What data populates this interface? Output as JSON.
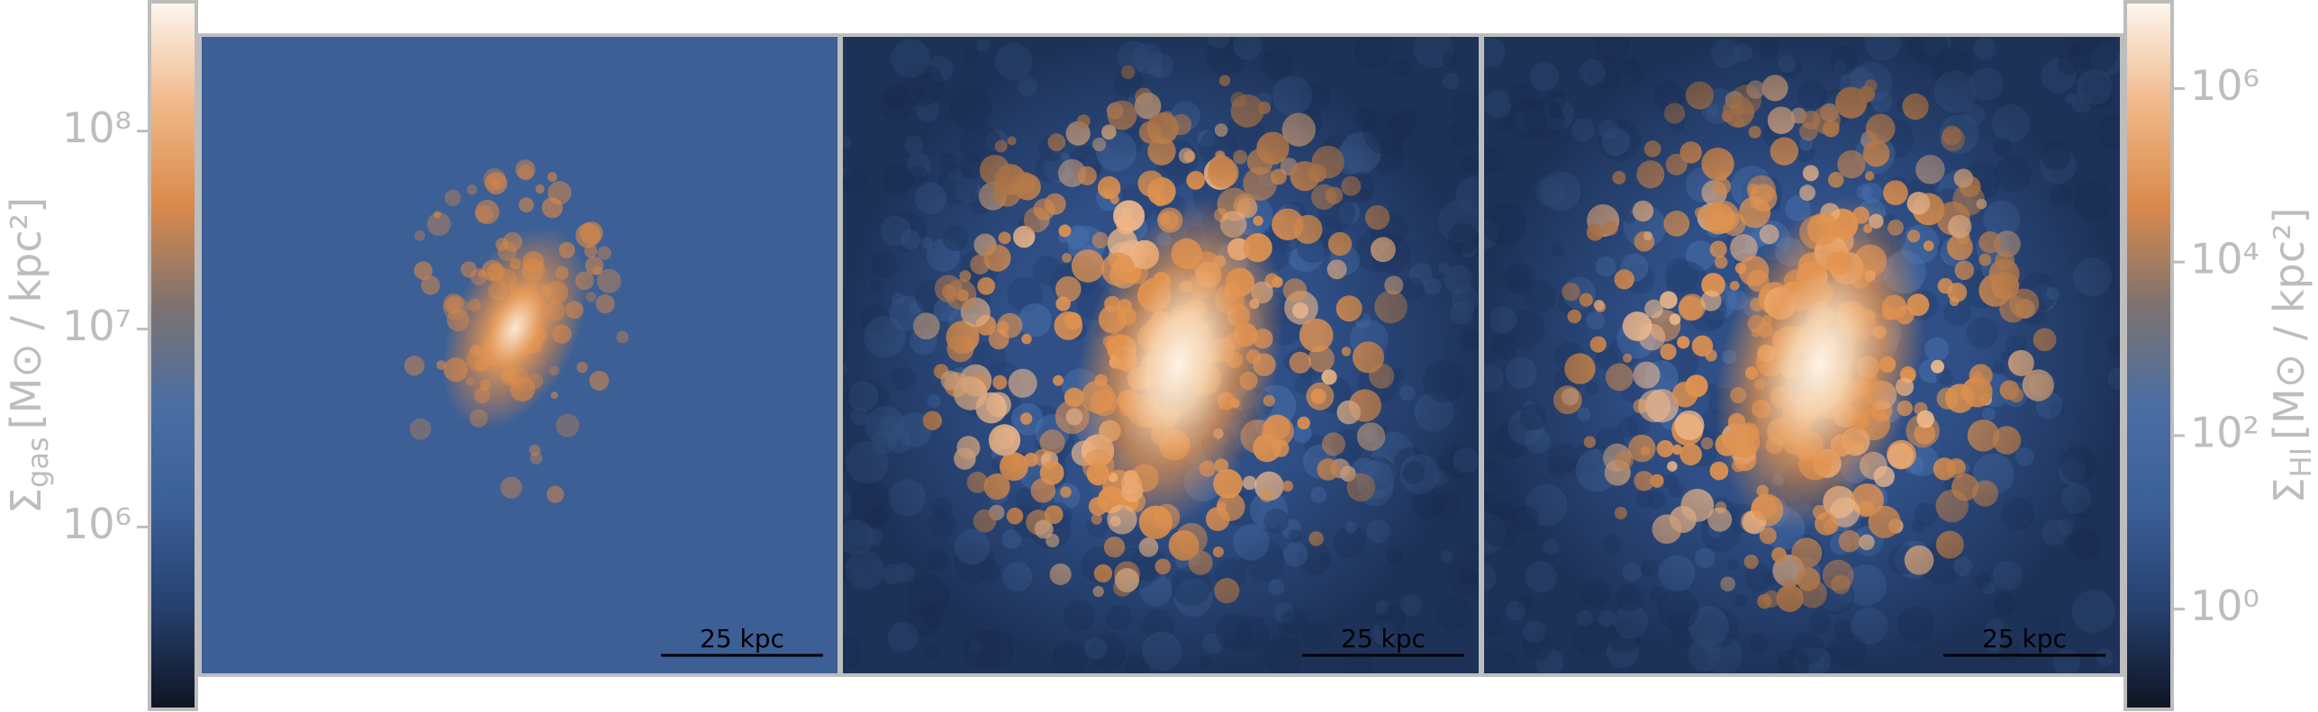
{
  "chart_data": {
    "type": "image-map",
    "colormap": [
      "#0e1422",
      "#26406e",
      "#3b5f98",
      "#4a6ea4",
      "#7d7370",
      "#db8a4a",
      "#f0b98a",
      "#fcf6ee"
    ],
    "colorbars": [
      {
        "axis_label": {
          "symbol": "Σ",
          "subscript": "gas",
          "unit": "[M⊙ / kpc²]"
        },
        "log_scale": true,
        "ylim": [
          120000,
          450000000
        ],
        "yticks": [
          {
            "value": 1000000,
            "label": "10⁶"
          },
          {
            "value": 10000000,
            "label": "10⁷"
          },
          {
            "value": 100000000,
            "label": "10⁸"
          }
        ]
      },
      {
        "axis_label": {
          "symbol": "Σ",
          "subscript": "HI",
          "unit": "[M⊙ / kpc²]"
        },
        "log_scale": true,
        "ylim": [
          0.07,
          10000000
        ],
        "yticks": [
          {
            "value": 1,
            "label": "10⁰"
          },
          {
            "value": 100,
            "label": "10²"
          },
          {
            "value": 10000,
            "label": "10⁴"
          },
          {
            "value": 1000000,
            "label": "10⁶"
          }
        ]
      }
    ],
    "panels": [
      {
        "scale_bar": "25 kpc"
      },
      {
        "scale_bar": "25 kpc"
      },
      {
        "scale_bar": "25 kpc"
      }
    ]
  }
}
